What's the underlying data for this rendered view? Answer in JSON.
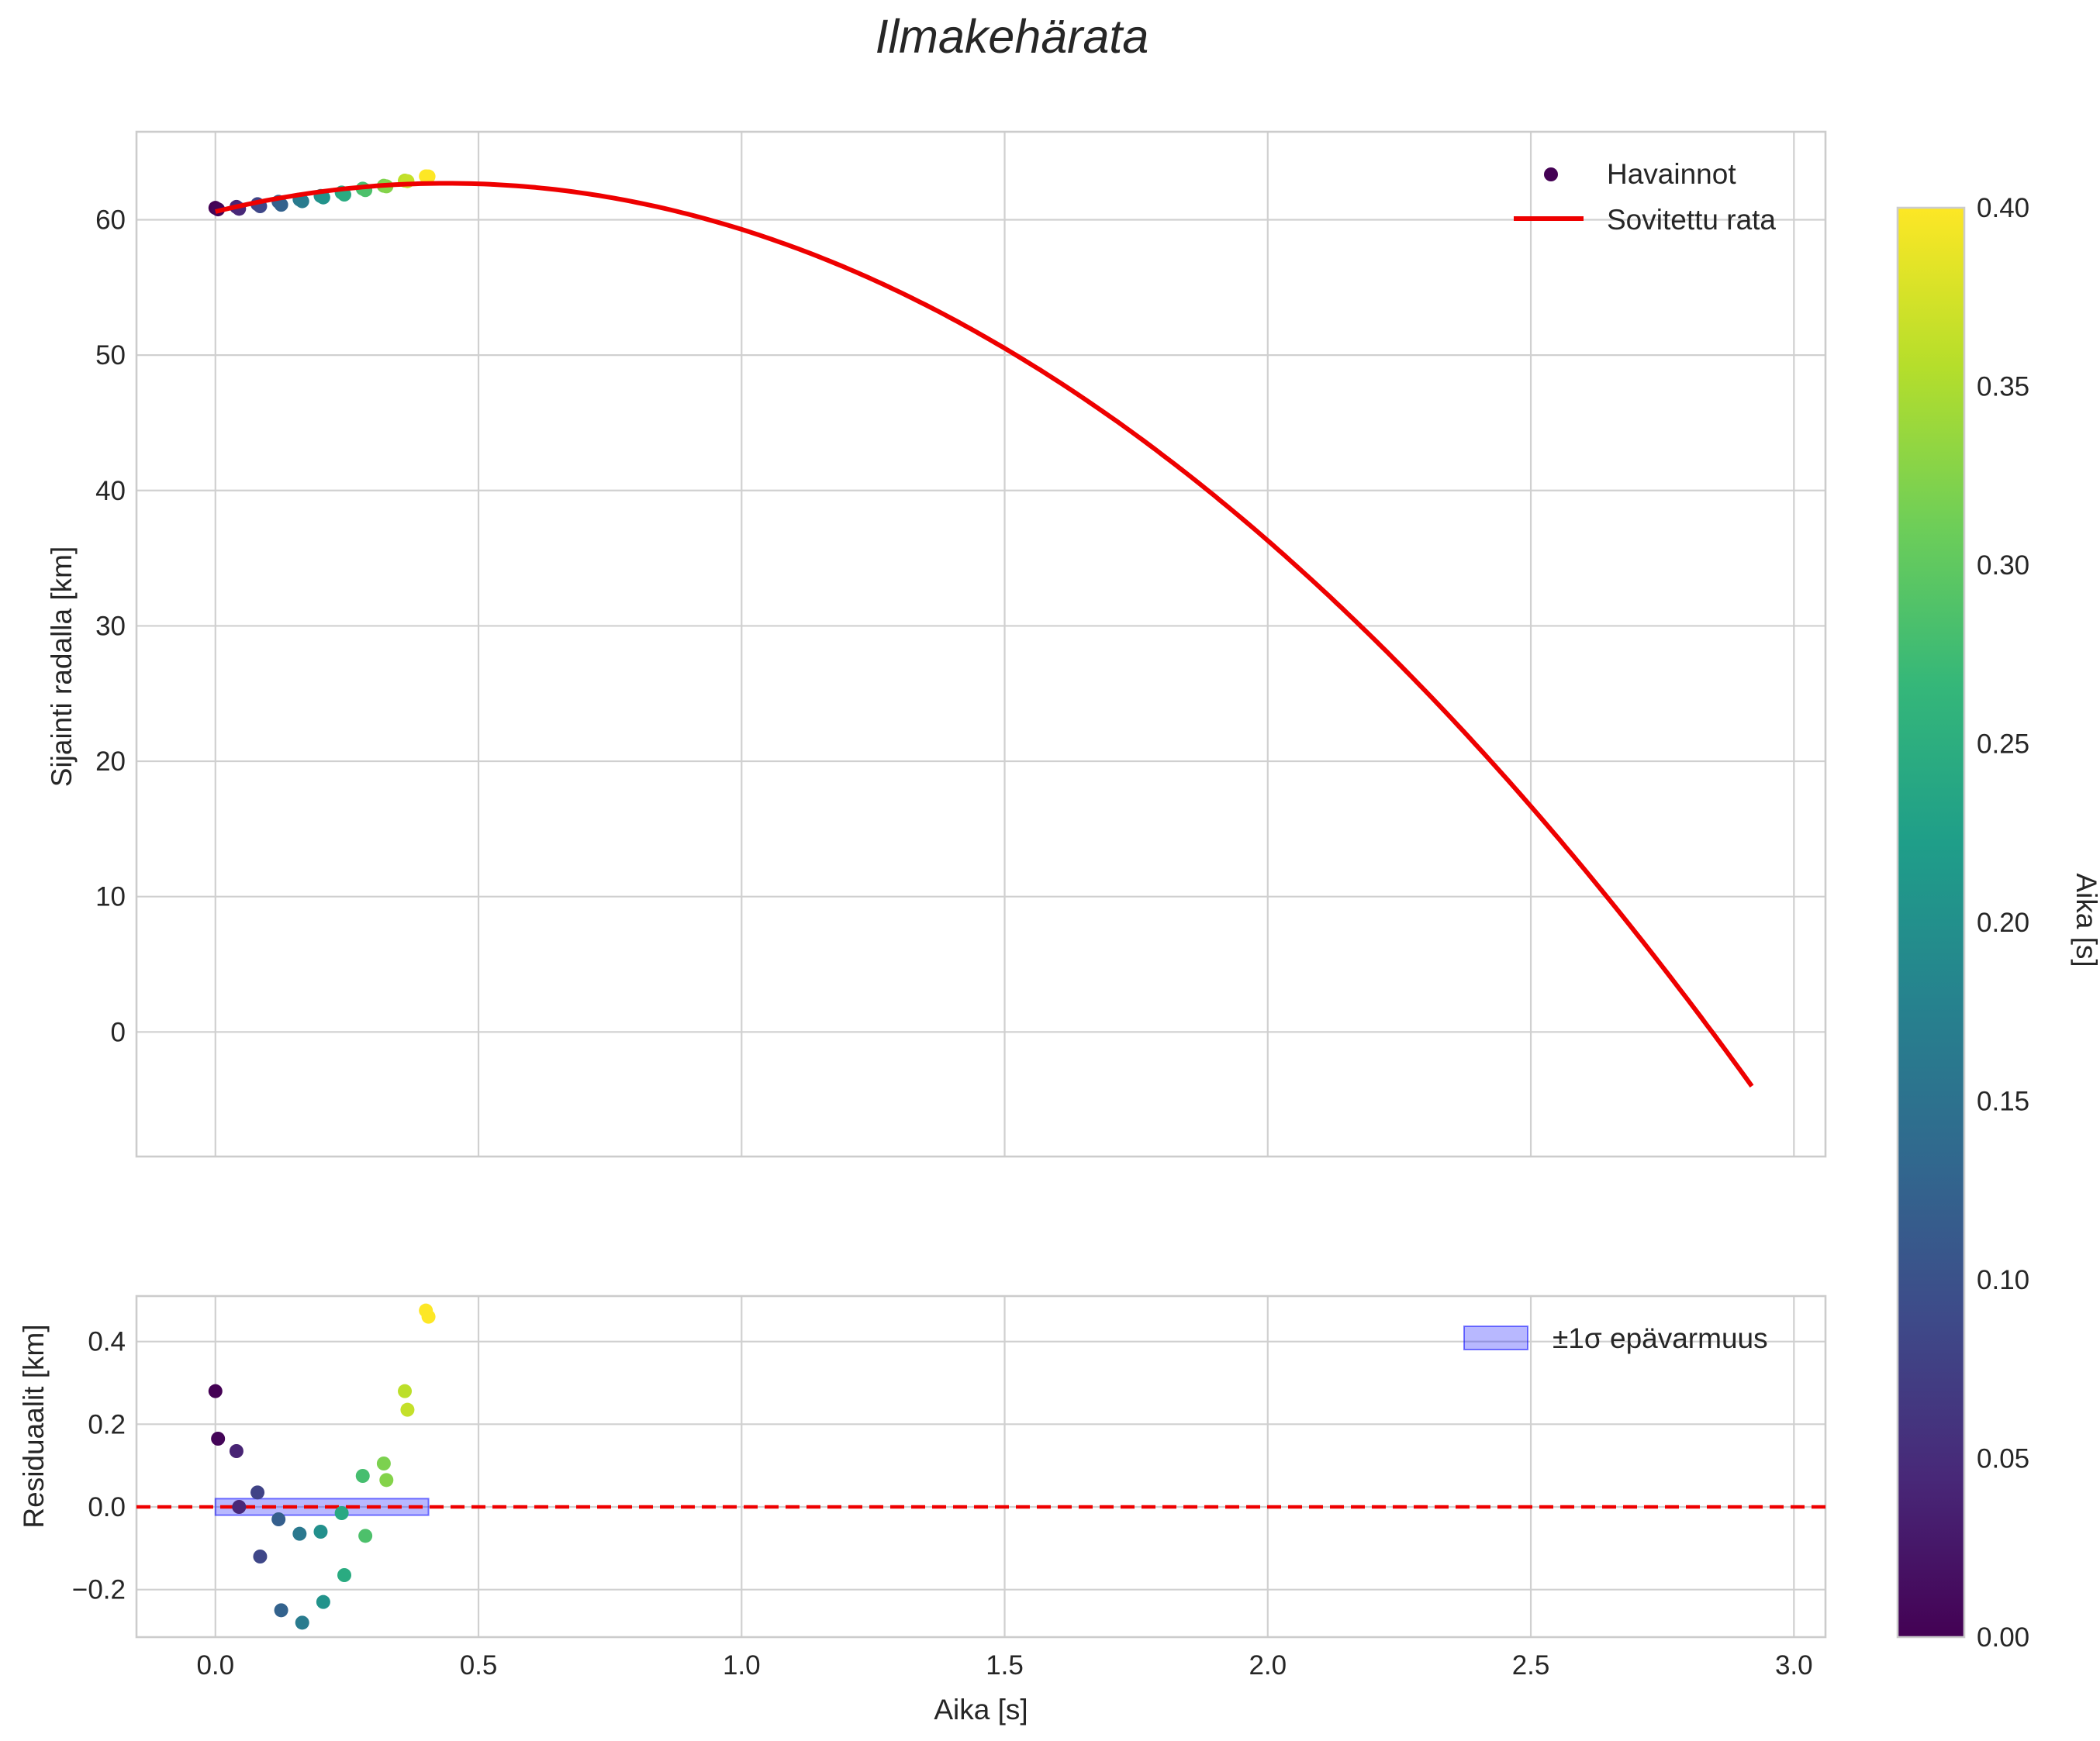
{
  "chart_data": {
    "type": "scatter+line",
    "title": "Ilmakehärata",
    "main": {
      "ylabel": "Sijainti radalla [km]",
      "xlim": [
        -0.15,
        3.06
      ],
      "ylim": [
        -9.2,
        66.5
      ],
      "xticks": [
        0.0,
        0.5,
        1.0,
        1.5,
        2.0,
        2.5,
        3.0
      ],
      "yticks": [
        0,
        10,
        20,
        30,
        40,
        50,
        60
      ],
      "yticklabels": [
        "0",
        "10",
        "20",
        "30",
        "40",
        "50",
        "60"
      ],
      "legend": {
        "observations": "Havainnot",
        "fit": "Sovitettu rata"
      },
      "fit": {
        "name": "Sovitettu rata",
        "color": "#ee0000",
        "t_start": 0.0,
        "t_end": 2.92,
        "coeffs": [
          60.6,
          9.53,
          -10.84
        ]
      },
      "observations": {
        "name": "Havainnot",
        "t": [
          0.0,
          0.005,
          0.04,
          0.045,
          0.08,
          0.085,
          0.12,
          0.125,
          0.16,
          0.165,
          0.2,
          0.205,
          0.24,
          0.245,
          0.28,
          0.285,
          0.32,
          0.325,
          0.36,
          0.365,
          0.4,
          0.405
        ],
        "y": [
          60.88,
          60.77,
          60.95,
          60.81,
          61.15,
          61.0,
          61.33,
          61.11,
          61.5,
          61.37,
          61.76,
          61.65,
          62.01,
          61.86,
          62.3,
          62.19,
          62.51,
          62.47,
          62.89,
          62.85,
          63.21,
          63.2
        ]
      }
    },
    "residual": {
      "xlabel": "Aika [s]",
      "ylabel": "Residuaalit [km]",
      "xlim": [
        -0.15,
        3.06
      ],
      "ylim": [
        -0.315,
        0.51
      ],
      "xticks": [
        0.0,
        0.5,
        1.0,
        1.5,
        2.0,
        2.5,
        3.0
      ],
      "xticklabels": [
        "0.0",
        "0.5",
        "1.0",
        "1.5",
        "2.0",
        "2.5",
        "3.0"
      ],
      "yticks": [
        -0.2,
        0.0,
        0.2,
        0.4
      ],
      "yticklabels": [
        "−0.2",
        "0.0",
        "0.2",
        "0.4"
      ],
      "legend": {
        "band": "±1σ epävarmuus"
      },
      "zero_line_color": "#ee0000",
      "band": {
        "t_start": 0.0,
        "t_end": 0.405,
        "half_width": 0.02,
        "color": "#0000ff"
      },
      "t": [
        0.0,
        0.005,
        0.04,
        0.045,
        0.08,
        0.085,
        0.12,
        0.125,
        0.16,
        0.165,
        0.2,
        0.205,
        0.24,
        0.245,
        0.28,
        0.285,
        0.32,
        0.325,
        0.36,
        0.365,
        0.4,
        0.405
      ],
      "r": [
        0.28,
        0.165,
        0.135,
        0.0,
        0.035,
        -0.12,
        -0.03,
        -0.25,
        -0.065,
        -0.28,
        -0.06,
        -0.23,
        -0.015,
        -0.165,
        0.075,
        -0.07,
        0.105,
        0.065,
        0.28,
        0.235,
        0.475,
        0.46
      ]
    },
    "colorbar": {
      "label": "Aika [s]",
      "range": [
        0.0,
        0.4
      ],
      "ticks": [
        0.0,
        0.05,
        0.1,
        0.15,
        0.2,
        0.25,
        0.3,
        0.35,
        0.4
      ],
      "ticklabels": [
        "0.00",
        "0.05",
        "0.10",
        "0.15",
        "0.20",
        "0.25",
        "0.30",
        "0.35",
        "0.40"
      ],
      "colormap": "viridis",
      "stops": [
        "#440154",
        "#482878",
        "#3e4a89",
        "#31688e",
        "#26828e",
        "#1f9e89",
        "#35b779",
        "#6ece58",
        "#b5de2b",
        "#fde725"
      ]
    }
  }
}
